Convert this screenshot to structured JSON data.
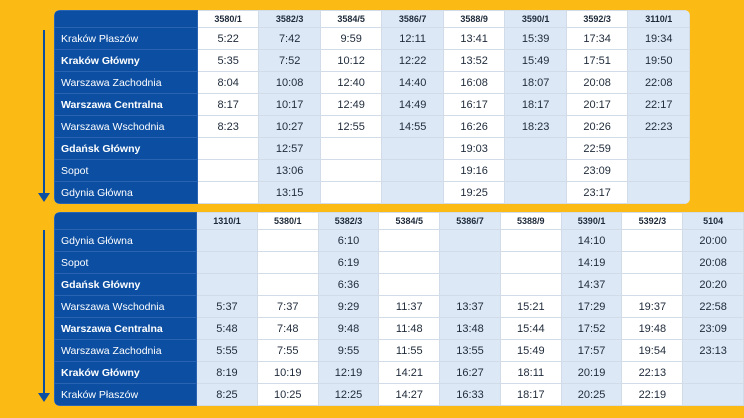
{
  "top_table": {
    "trains": [
      "3580/1",
      "3582/3",
      "3584/5",
      "3586/7",
      "3588/9",
      "3590/1",
      "3592/3",
      "3110/1"
    ],
    "rows": [
      {
        "station": "Kraków Płaszów",
        "bold": false,
        "times": [
          "5:22",
          "7:42",
          "9:59",
          "12:11",
          "13:41",
          "15:39",
          "17:34",
          "19:34"
        ]
      },
      {
        "station": "Kraków Główny",
        "bold": true,
        "times": [
          "5:35",
          "7:52",
          "10:12",
          "12:22",
          "13:52",
          "15:49",
          "17:51",
          "19:50"
        ]
      },
      {
        "station": "Warszawa Zachodnia",
        "bold": false,
        "times": [
          "8:04",
          "10:08",
          "12:40",
          "14:40",
          "16:08",
          "18:07",
          "20:08",
          "22:08"
        ]
      },
      {
        "station": "Warszawa Centralna",
        "bold": true,
        "times": [
          "8:17",
          "10:17",
          "12:49",
          "14:49",
          "16:17",
          "18:17",
          "20:17",
          "22:17"
        ]
      },
      {
        "station": "Warszawa Wschodnia",
        "bold": false,
        "times": [
          "8:23",
          "10:27",
          "12:55",
          "14:55",
          "16:26",
          "18:23",
          "20:26",
          "22:23"
        ]
      },
      {
        "station": "Gdańsk Główny",
        "bold": true,
        "times": [
          "",
          "12:57",
          "",
          "",
          "19:03",
          "",
          "22:59",
          ""
        ]
      },
      {
        "station": "Sopot",
        "bold": false,
        "times": [
          "",
          "13:06",
          "",
          "",
          "19:16",
          "",
          "23:09",
          ""
        ]
      },
      {
        "station": "Gdynia Główna",
        "bold": false,
        "times": [
          "",
          "13:15",
          "",
          "",
          "19:25",
          "",
          "23:17",
          ""
        ]
      }
    ]
  },
  "bottom_table": {
    "trains": [
      "1310/1",
      "5380/1",
      "5382/3",
      "5384/5",
      "5386/7",
      "5388/9",
      "5390/1",
      "5392/3",
      "5104"
    ],
    "rows": [
      {
        "station": "Gdynia Główna",
        "bold": false,
        "times": [
          "",
          "",
          "6:10",
          "",
          "",
          "",
          "14:10",
          "",
          "20:00"
        ]
      },
      {
        "station": "Sopot",
        "bold": false,
        "times": [
          "",
          "",
          "6:19",
          "",
          "",
          "",
          "14:19",
          "",
          "20:08"
        ]
      },
      {
        "station": "Gdańsk Główny",
        "bold": true,
        "times": [
          "",
          "",
          "6:36",
          "",
          "",
          "",
          "14:37",
          "",
          "20:20"
        ]
      },
      {
        "station": "Warszawa Wschodnia",
        "bold": false,
        "times": [
          "5:37",
          "7:37",
          "9:29",
          "11:37",
          "13:37",
          "15:21",
          "17:29",
          "19:37",
          "22:58"
        ]
      },
      {
        "station": "Warszawa Centralna",
        "bold": true,
        "times": [
          "5:48",
          "7:48",
          "9:48",
          "11:48",
          "13:48",
          "15:44",
          "17:52",
          "19:48",
          "23:09"
        ]
      },
      {
        "station": "Warszawa Zachodnia",
        "bold": false,
        "times": [
          "5:55",
          "7:55",
          "9:55",
          "11:55",
          "13:55",
          "15:49",
          "17:57",
          "19:54",
          "23:13"
        ]
      },
      {
        "station": "Kraków Główny",
        "bold": true,
        "times": [
          "8:19",
          "10:19",
          "12:19",
          "14:21",
          "16:27",
          "18:11",
          "20:19",
          "22:13",
          ""
        ]
      },
      {
        "station": "Kraków Płaszów",
        "bold": false,
        "times": [
          "8:25",
          "10:25",
          "12:25",
          "14:27",
          "16:33",
          "18:17",
          "20:25",
          "22:19",
          ""
        ]
      }
    ]
  }
}
